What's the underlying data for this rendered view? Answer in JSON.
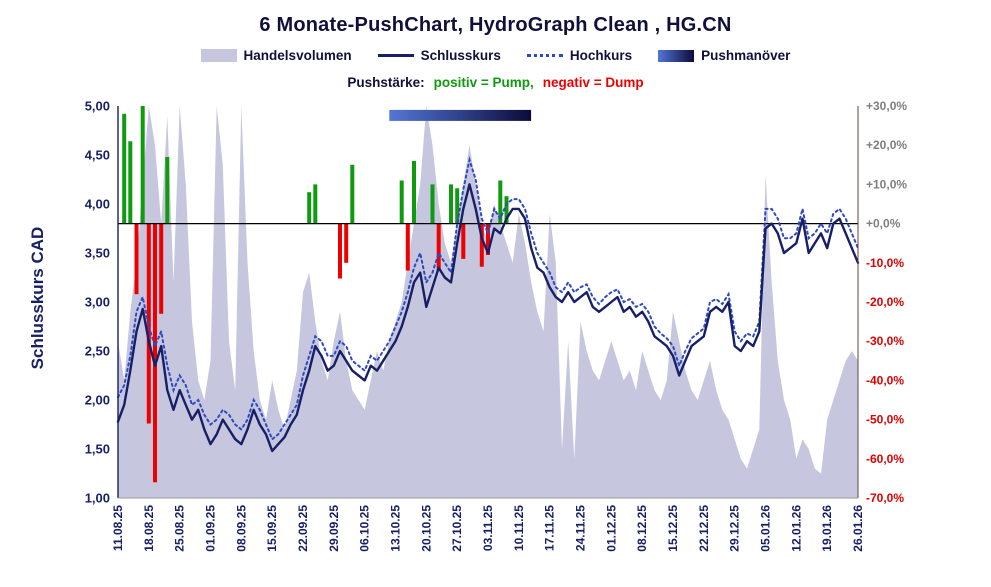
{
  "title": "6 Monate-PushChart, HydroGraph Clean , HG.CN",
  "legend": [
    {
      "label": "Handelsvolumen",
      "swatch": "area"
    },
    {
      "label": "Schlusskurs",
      "swatch": "line"
    },
    {
      "label": "Hochkurs",
      "swatch": "dotted"
    },
    {
      "label": "Pushmanöver",
      "swatch": "gradient"
    }
  ],
  "caption": {
    "prefix": "Pushstärke:",
    "positive": "positiv = Pump,",
    "negative": "negativ = Dump"
  },
  "axes": {
    "left_title": "Schlusskurs CAD"
  },
  "chart_data": {
    "type": "composite",
    "x_labels": [
      "11.08.25",
      "18.08.25",
      "25.08.25",
      "01.09.25",
      "08.09.25",
      "15.09.25",
      "22.09.25",
      "29.09.25",
      "06.10.25",
      "13.10.25",
      "20.10.25",
      "27.10.25",
      "03.11.25",
      "10.11.25",
      "17.11.25",
      "24.11.25",
      "01.12.25",
      "08.12.25",
      "15.12.25",
      "22.12.25",
      "29.12.25",
      "05.01.26",
      "12.01.26",
      "19.01.26",
      "26.01.26"
    ],
    "days_per_label": 5,
    "left_axis": {
      "min": 1.0,
      "max": 5.0,
      "tick_labels": [
        "5,00",
        "4,50",
        "4,00",
        "3,50",
        "3,00",
        "2,50",
        "2,00",
        "1,50",
        "1,00"
      ]
    },
    "right_axis": {
      "min": -70,
      "max": 30,
      "zero_at_price": 3.8,
      "tick_labels": [
        "+30,0%",
        "+20,0%",
        "+10,0%",
        "+0,0%",
        "-10,0%",
        "-20,0%",
        "-30,0%",
        "-40,0%",
        "-50,0%",
        "-60,0%",
        "-70,0%"
      ]
    },
    "series": [
      {
        "name": "Handelsvolumen",
        "type": "area",
        "values": [
          2.6,
          2.2,
          2.9,
          3.4,
          4.2,
          5.0,
          4.6,
          3.8,
          4.9,
          3.2,
          5.0,
          4.2,
          2.8,
          2.2,
          2.0,
          2.4,
          5.0,
          4.4,
          2.6,
          2.1,
          5.0,
          3.4,
          2.5,
          2.0,
          1.8,
          2.2,
          1.9,
          1.7,
          2.0,
          2.3,
          3.1,
          3.3,
          2.8,
          2.4,
          2.2,
          2.6,
          2.9,
          2.4,
          2.1,
          2.0,
          1.9,
          2.2,
          2.5,
          2.3,
          2.6,
          2.8,
          3.0,
          3.4,
          3.8,
          4.2,
          5.0,
          4.6,
          4.0,
          3.6,
          3.4,
          3.8,
          4.2,
          4.6,
          4.2,
          3.8,
          3.6,
          4.0,
          3.8,
          3.6,
          3.4,
          3.9,
          3.6,
          3.2,
          2.9,
          2.7,
          3.9,
          3.4,
          1.5,
          2.6,
          1.4,
          2.8,
          2.5,
          2.3,
          2.2,
          2.4,
          2.6,
          2.4,
          2.2,
          2.3,
          2.1,
          2.5,
          2.3,
          2.1,
          2.0,
          2.2,
          2.9,
          2.6,
          2.3,
          2.1,
          2.0,
          2.2,
          2.4,
          2.1,
          1.9,
          1.8,
          1.6,
          1.4,
          1.3,
          1.5,
          1.7,
          4.3,
          3.2,
          2.4,
          2.0,
          1.8,
          1.4,
          1.6,
          1.5,
          1.3,
          1.25,
          1.8,
          2.0,
          2.2,
          2.4,
          2.5,
          2.4
        ]
      },
      {
        "name": "Schlusskurs",
        "type": "line",
        "values": [
          1.78,
          1.95,
          2.3,
          2.7,
          2.93,
          2.6,
          2.35,
          2.55,
          2.1,
          1.9,
          2.1,
          1.95,
          1.8,
          1.9,
          1.7,
          1.55,
          1.65,
          1.8,
          1.7,
          1.6,
          1.55,
          1.7,
          1.9,
          1.75,
          1.65,
          1.48,
          1.55,
          1.62,
          1.75,
          1.85,
          2.1,
          2.3,
          2.55,
          2.45,
          2.3,
          2.35,
          2.5,
          2.4,
          2.3,
          2.25,
          2.2,
          2.35,
          2.3,
          2.4,
          2.5,
          2.6,
          2.75,
          2.95,
          3.2,
          3.3,
          2.95,
          3.15,
          3.35,
          3.25,
          3.2,
          3.6,
          3.95,
          4.2,
          3.95,
          3.65,
          3.5,
          3.75,
          3.7,
          3.85,
          3.95,
          3.95,
          3.85,
          3.55,
          3.35,
          3.3,
          3.15,
          3.05,
          3.0,
          3.1,
          3.0,
          3.05,
          3.1,
          2.95,
          2.9,
          2.95,
          3.0,
          3.05,
          2.9,
          2.95,
          2.85,
          2.9,
          2.8,
          2.65,
          2.6,
          2.55,
          2.45,
          2.25,
          2.4,
          2.55,
          2.6,
          2.65,
          2.9,
          2.95,
          2.9,
          3.0,
          2.55,
          2.5,
          2.6,
          2.55,
          2.7,
          3.75,
          3.8,
          3.7,
          3.5,
          3.55,
          3.6,
          3.85,
          3.5,
          3.6,
          3.7,
          3.55,
          3.8,
          3.85,
          3.7,
          3.55,
          3.4
        ]
      },
      {
        "name": "Hochkurs",
        "type": "dotted-line",
        "values": [
          2.03,
          2.15,
          2.45,
          2.9,
          3.05,
          2.75,
          2.55,
          2.7,
          2.35,
          2.1,
          2.25,
          2.15,
          1.95,
          2.0,
          1.85,
          1.75,
          1.8,
          1.9,
          1.85,
          1.75,
          1.7,
          1.8,
          2.0,
          1.9,
          1.75,
          1.6,
          1.65,
          1.75,
          1.85,
          1.95,
          2.25,
          2.45,
          2.65,
          2.6,
          2.45,
          2.45,
          2.6,
          2.55,
          2.4,
          2.35,
          2.3,
          2.45,
          2.4,
          2.5,
          2.6,
          2.75,
          2.9,
          3.1,
          3.35,
          3.5,
          3.2,
          3.3,
          3.5,
          3.4,
          3.3,
          3.8,
          4.15,
          4.45,
          4.25,
          3.85,
          3.7,
          3.95,
          3.85,
          4.0,
          4.05,
          4.05,
          3.95,
          3.7,
          3.5,
          3.4,
          3.3,
          3.15,
          3.1,
          3.2,
          3.1,
          3.15,
          3.18,
          3.05,
          2.98,
          3.05,
          3.1,
          3.13,
          3.0,
          3.03,
          2.95,
          2.98,
          2.9,
          2.75,
          2.68,
          2.63,
          2.55,
          2.35,
          2.5,
          2.63,
          2.68,
          2.73,
          3.0,
          3.03,
          2.98,
          3.08,
          2.7,
          2.6,
          2.68,
          2.65,
          2.8,
          3.95,
          3.95,
          3.85,
          3.65,
          3.65,
          3.7,
          3.95,
          3.65,
          3.7,
          3.8,
          3.7,
          3.9,
          3.95,
          3.85,
          3.7,
          3.55
        ]
      },
      {
        "name": "Pushstärke",
        "type": "bar",
        "points": [
          {
            "day": 1,
            "pct": 28
          },
          {
            "day": 2,
            "pct": 21
          },
          {
            "day": 3,
            "pct": -18
          },
          {
            "day": 4,
            "pct": 30
          },
          {
            "day": 5,
            "pct": -51
          },
          {
            "day": 6,
            "pct": -66
          },
          {
            "day": 7,
            "pct": -23
          },
          {
            "day": 8,
            "pct": 17
          },
          {
            "day": 31,
            "pct": 8
          },
          {
            "day": 32,
            "pct": 10
          },
          {
            "day": 36,
            "pct": -14
          },
          {
            "day": 37,
            "pct": -10
          },
          {
            "day": 38,
            "pct": 15
          },
          {
            "day": 46,
            "pct": 11
          },
          {
            "day": 47,
            "pct": -12
          },
          {
            "day": 48,
            "pct": 16
          },
          {
            "day": 51,
            "pct": 10
          },
          {
            "day": 52,
            "pct": -12
          },
          {
            "day": 54,
            "pct": 10
          },
          {
            "day": 55,
            "pct": 9
          },
          {
            "day": 56,
            "pct": -9
          },
          {
            "day": 59,
            "pct": -11
          },
          {
            "day": 60,
            "pct": -8
          },
          {
            "day": 62,
            "pct": 11
          },
          {
            "day": 63,
            "pct": 7
          }
        ]
      },
      {
        "name": "Pushmanöver",
        "type": "band",
        "start_day": 44,
        "end_day": 67,
        "pct_top": 29,
        "pct_bottom": 26.2
      }
    ],
    "colors": {
      "volume": "#c6c7de",
      "close": "#171f66",
      "high": "#2f49c0",
      "pump": "#0f9a0f",
      "dump": "#ee0000",
      "band_from": "#5377d6",
      "band_to": "#0b0b3a",
      "zero_line": "#000000",
      "axis_text": "#171f66",
      "pct_positive": "#7f7f7f",
      "pct_negative": "#e00000"
    }
  }
}
